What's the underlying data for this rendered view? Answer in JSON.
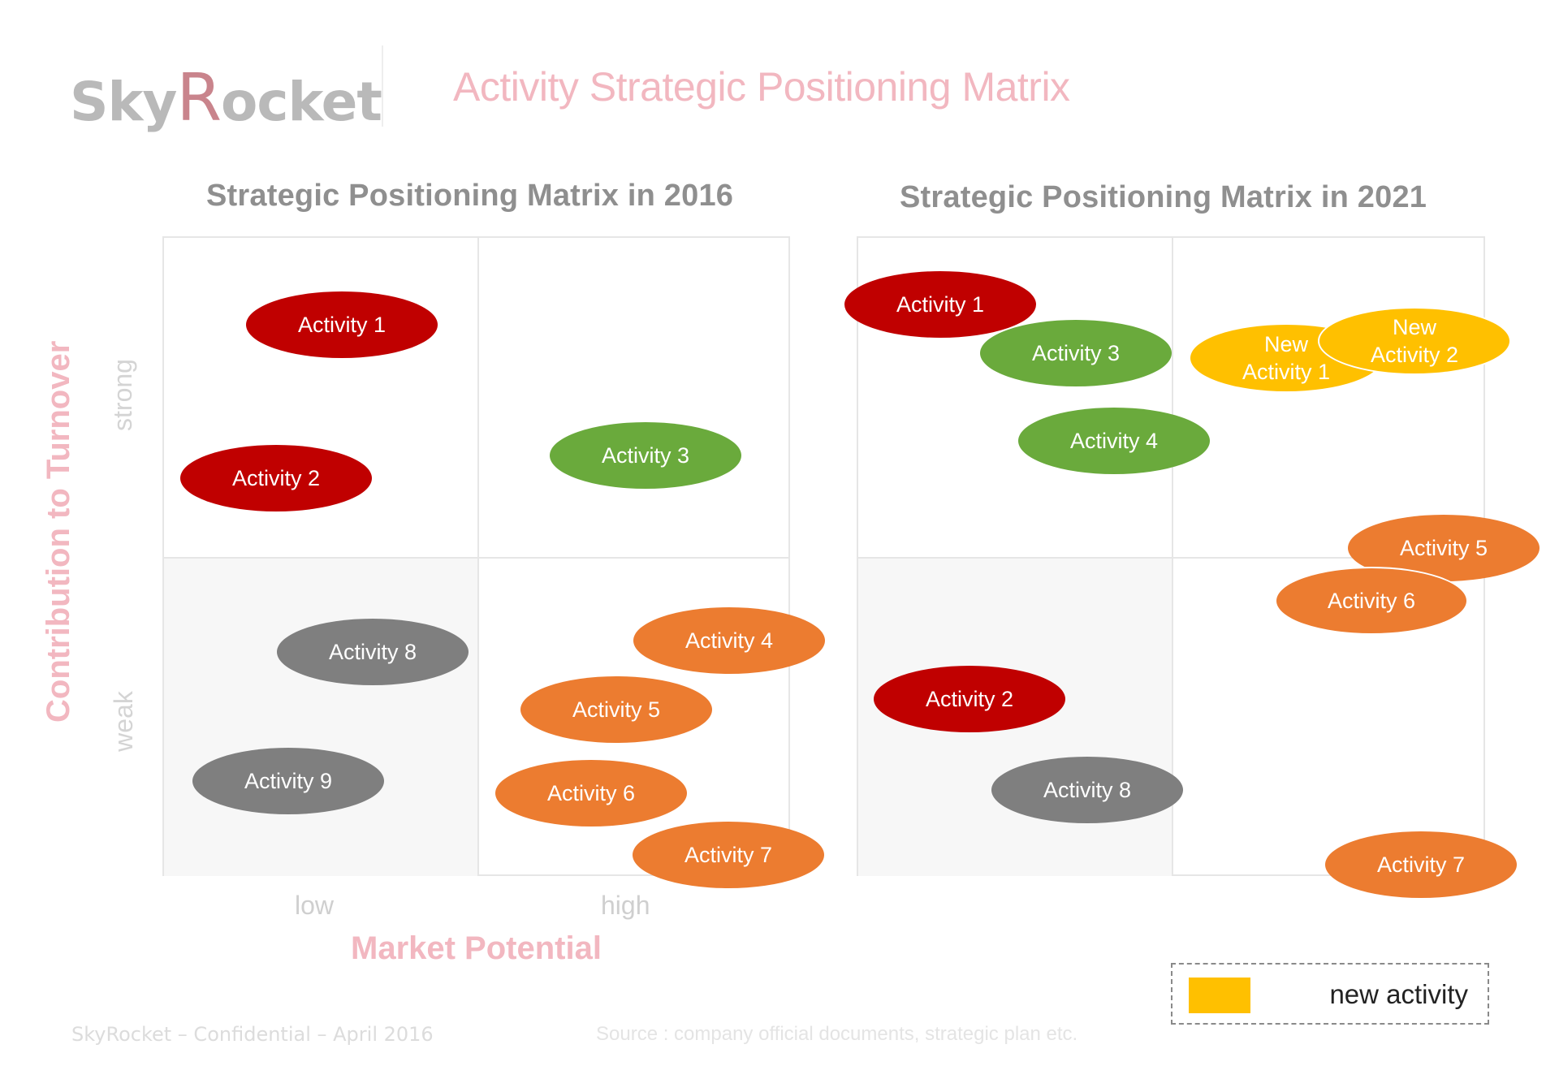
{
  "header": {
    "logo_text_a": "Sky",
    "logo_text_r": "R",
    "logo_text_b": "ocket",
    "title": "Activity Strategic Positioning Matrix"
  },
  "colors": {
    "red": "#c00000",
    "green": "#6aaa3c",
    "orange": "#ec7c30",
    "gray": "#7f7f7f",
    "yellow": "#ffc000",
    "axis_title": "#f2b7c0",
    "matrix_title": "#8f8f8f"
  },
  "axes": {
    "y_title": "Contribution to Turnover",
    "y_high": "strong",
    "y_low": "weak",
    "x_title": "Market Potential",
    "x_low": "low",
    "x_high": "high"
  },
  "matrices": [
    {
      "title": "Strategic Positioning Matrix in 2016",
      "bubbles": [
        {
          "label": "Activity 1",
          "color": "red"
        },
        {
          "label": "Activity 2",
          "color": "red"
        },
        {
          "label": "Activity 3",
          "color": "green"
        },
        {
          "label": "Activity 8",
          "color": "gray"
        },
        {
          "label": "Activity 4",
          "color": "orange"
        },
        {
          "label": "Activity 5",
          "color": "orange"
        },
        {
          "label": "Activity 9",
          "color": "gray"
        },
        {
          "label": "Activity 6",
          "color": "orange"
        },
        {
          "label": "Activity 7",
          "color": "orange"
        }
      ]
    },
    {
      "title": "Strategic Positioning Matrix in 2021",
      "bubbles": [
        {
          "label": "Activity 1",
          "color": "red"
        },
        {
          "label": "Activity 3",
          "color": "green"
        },
        {
          "label": "New\nActivity 1",
          "color": "yellow"
        },
        {
          "label": "New\nActivity 2",
          "color": "yellow"
        },
        {
          "label": "Activity 4",
          "color": "green"
        },
        {
          "label": "Activity 5",
          "color": "orange"
        },
        {
          "label": "Activity 6",
          "color": "orange"
        },
        {
          "label": "Activity 2",
          "color": "red"
        },
        {
          "label": "Activity 8",
          "color": "gray"
        },
        {
          "label": "Activity 7",
          "color": "orange"
        }
      ]
    }
  ],
  "legend": {
    "label": "new activity",
    "color": "yellow"
  },
  "footer": {
    "left": "SkyRocket – Confidential – April 2016",
    "source": "Source : company official documents, strategic plan etc."
  }
}
